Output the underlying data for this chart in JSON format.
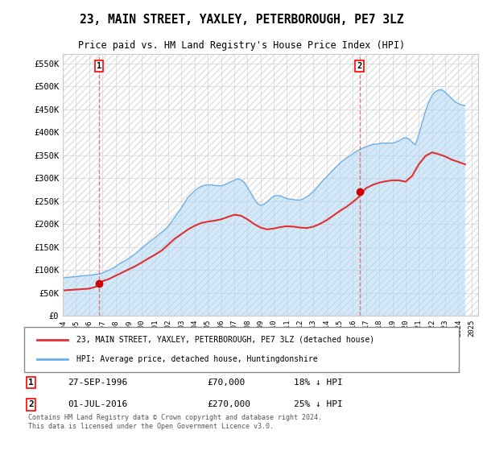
{
  "title": "23, MAIN STREET, YAXLEY, PETERBOROUGH, PE7 3LZ",
  "subtitle": "Price paid vs. HM Land Registry's House Price Index (HPI)",
  "ylabel": "",
  "xlim_start": 1994.0,
  "xlim_end": 2025.5,
  "ylim_min": 0,
  "ylim_max": 570000,
  "yticks": [
    0,
    50000,
    100000,
    150000,
    200000,
    250000,
    300000,
    350000,
    400000,
    450000,
    500000,
    550000
  ],
  "ytick_labels": [
    "£0",
    "£50K",
    "£100K",
    "£150K",
    "£200K",
    "£250K",
    "£300K",
    "£350K",
    "£400K",
    "£450K",
    "£500K",
    "£550K"
  ],
  "xticks": [
    1994,
    1995,
    1996,
    1997,
    1998,
    1999,
    2000,
    2001,
    2002,
    2003,
    2004,
    2005,
    2006,
    2007,
    2008,
    2009,
    2010,
    2011,
    2012,
    2013,
    2014,
    2015,
    2016,
    2017,
    2018,
    2019,
    2020,
    2021,
    2022,
    2023,
    2024,
    2025
  ],
  "sale1_x": 1996.74,
  "sale1_y": 70000,
  "sale1_label": "1",
  "sale1_date": "27-SEP-1996",
  "sale1_price": "£70,000",
  "sale1_hpi": "18% ↓ HPI",
  "sale2_x": 2016.5,
  "sale2_y": 270000,
  "sale2_label": "2",
  "sale2_date": "01-JUL-2016",
  "sale2_price": "£270,000",
  "sale2_hpi": "25% ↓ HPI",
  "hpi_color": "#aad4f5",
  "hpi_line_color": "#6ab0e8",
  "price_color": "#e03030",
  "marker_color": "#cc0000",
  "vline_color": "#e06060",
  "background_color": "#ffffff",
  "grid_color": "#cccccc",
  "legend_label_red": "23, MAIN STREET, YAXLEY, PETERBOROUGH, PE7 3LZ (detached house)",
  "legend_label_blue": "HPI: Average price, detached house, Huntingdonshire",
  "footnote": "Contains HM Land Registry data © Crown copyright and database right 2024.\nThis data is licensed under the Open Government Licence v3.0.",
  "hpi_x": [
    1994,
    1994.25,
    1994.5,
    1994.75,
    1995,
    1995.25,
    1995.5,
    1995.75,
    1996,
    1996.25,
    1996.5,
    1996.75,
    1997,
    1997.25,
    1997.5,
    1997.75,
    1998,
    1998.25,
    1998.5,
    1998.75,
    1999,
    1999.25,
    1999.5,
    1999.75,
    2000,
    2000.25,
    2000.5,
    2000.75,
    2001,
    2001.25,
    2001.5,
    2001.75,
    2002,
    2002.25,
    2002.5,
    2002.75,
    2003,
    2003.25,
    2003.5,
    2003.75,
    2004,
    2004.25,
    2004.5,
    2004.75,
    2005,
    2005.25,
    2005.5,
    2005.75,
    2006,
    2006.25,
    2006.5,
    2006.75,
    2007,
    2007.25,
    2007.5,
    2007.75,
    2008,
    2008.25,
    2008.5,
    2008.75,
    2009,
    2009.25,
    2009.5,
    2009.75,
    2010,
    2010.25,
    2010.5,
    2010.75,
    2011,
    2011.25,
    2011.5,
    2011.75,
    2012,
    2012.25,
    2012.5,
    2012.75,
    2013,
    2013.25,
    2013.5,
    2013.75,
    2014,
    2014.25,
    2014.5,
    2014.75,
    2015,
    2015.25,
    2015.5,
    2015.75,
    2016,
    2016.25,
    2016.5,
    2016.75,
    2017,
    2017.25,
    2017.5,
    2017.75,
    2018,
    2018.25,
    2018.5,
    2018.75,
    2019,
    2019.25,
    2019.5,
    2019.75,
    2020,
    2020.25,
    2020.5,
    2020.75,
    2021,
    2021.25,
    2021.5,
    2021.75,
    2022,
    2022.25,
    2022.5,
    2022.75,
    2023,
    2023.25,
    2023.5,
    2023.75,
    2024,
    2024.25,
    2024.5
  ],
  "hpi_y": [
    82000,
    83000,
    84000,
    84500,
    85000,
    86000,
    87000,
    87500,
    88000,
    89000,
    90000,
    91000,
    93000,
    96000,
    99000,
    103000,
    107000,
    112000,
    116000,
    120000,
    125000,
    130000,
    135000,
    141000,
    147000,
    153000,
    159000,
    165000,
    170000,
    176000,
    182000,
    188000,
    195000,
    205000,
    215000,
    225000,
    235000,
    247000,
    258000,
    265000,
    272000,
    278000,
    282000,
    284000,
    285000,
    285000,
    284000,
    283000,
    283000,
    285000,
    288000,
    292000,
    295000,
    298000,
    296000,
    291000,
    280000,
    268000,
    255000,
    245000,
    240000,
    243000,
    248000,
    255000,
    260000,
    262000,
    261000,
    258000,
    255000,
    254000,
    253000,
    252000,
    252000,
    255000,
    259000,
    264000,
    270000,
    278000,
    287000,
    295000,
    302000,
    310000,
    318000,
    325000,
    332000,
    338000,
    343000,
    348000,
    353000,
    358000,
    362000,
    365000,
    368000,
    371000,
    373000,
    374000,
    375000,
    376000,
    376000,
    376000,
    376000,
    378000,
    381000,
    386000,
    388000,
    385000,
    378000,
    372000,
    395000,
    420000,
    445000,
    465000,
    480000,
    488000,
    492000,
    492000,
    487000,
    480000,
    473000,
    466000,
    462000,
    459000,
    458000
  ],
  "price_x": [
    1994,
    1994.5,
    1995,
    1995.5,
    1996,
    1996.5,
    1996.74,
    1997,
    1997.5,
    1998,
    1998.5,
    1999,
    1999.5,
    2000,
    2000.5,
    2001,
    2001.5,
    2002,
    2002.5,
    2003,
    2003.5,
    2004,
    2004.5,
    2005,
    2005.5,
    2006,
    2006.5,
    2007,
    2007.5,
    2008,
    2008.5,
    2009,
    2009.5,
    2010,
    2010.5,
    2011,
    2011.5,
    2012,
    2012.5,
    2013,
    2013.5,
    2014,
    2014.5,
    2015,
    2015.5,
    2016,
    2016.5,
    2016.74,
    2017,
    2017.5,
    2018,
    2018.5,
    2019,
    2019.5,
    2020,
    2020.5,
    2021,
    2021.5,
    2022,
    2022.5,
    2023,
    2023.5,
    2024,
    2024.5
  ],
  "price_y": [
    55000,
    56000,
    57000,
    58000,
    59000,
    63000,
    70000,
    75000,
    80000,
    87000,
    94000,
    101000,
    108000,
    116000,
    125000,
    133000,
    142000,
    155000,
    168000,
    178000,
    188000,
    196000,
    202000,
    205000,
    207000,
    210000,
    215000,
    220000,
    218000,
    210000,
    200000,
    192000,
    188000,
    190000,
    193000,
    195000,
    194000,
    192000,
    191000,
    194000,
    200000,
    208000,
    218000,
    228000,
    237000,
    248000,
    260000,
    270000,
    278000,
    285000,
    290000,
    293000,
    295000,
    295000,
    292000,
    305000,
    330000,
    348000,
    356000,
    352000,
    347000,
    340000,
    335000,
    330000
  ]
}
